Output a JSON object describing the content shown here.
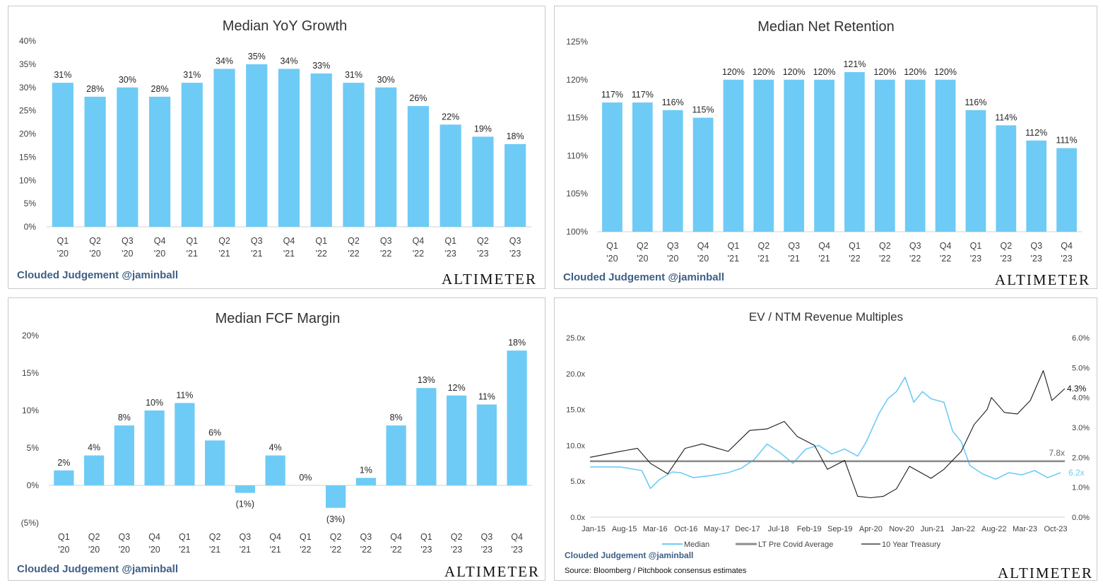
{
  "colors": {
    "bar": "#6ecbf5",
    "median_line": "#6ecbf5",
    "covid_avg_line": "#8c8c8c",
    "treasury_line": "#1a1a1a",
    "credit": "#3d5f86"
  },
  "branding": {
    "credit": "Clouded Judgement @jaminball",
    "logo": "ALTIMETER"
  },
  "panels": {
    "yoy": {
      "chart_data": {
        "type": "bar",
        "title": "Median YoY Growth",
        "categories": [
          [
            "Q1",
            "'20"
          ],
          [
            "Q2",
            "'20"
          ],
          [
            "Q3",
            "'20"
          ],
          [
            "Q4",
            "'20"
          ],
          [
            "Q1",
            "'21"
          ],
          [
            "Q2",
            "'21"
          ],
          [
            "Q3",
            "'21"
          ],
          [
            "Q4",
            "'21"
          ],
          [
            "Q1",
            "'22"
          ],
          [
            "Q2",
            "'22"
          ],
          [
            "Q3",
            "'22"
          ],
          [
            "Q4",
            "'22"
          ],
          [
            "Q1",
            "'23"
          ],
          [
            "Q2",
            "'23"
          ],
          [
            "Q3",
            "'23"
          ]
        ],
        "values": [
          31,
          28,
          30,
          28,
          31,
          34,
          35,
          34,
          33,
          31,
          30,
          26,
          22,
          19.4,
          17.8
        ],
        "data_labels": [
          "31%",
          "28%",
          "30%",
          "28%",
          "31%",
          "34%",
          "35%",
          "34%",
          "33%",
          "31%",
          "30%",
          "26%",
          "22%",
          "19%",
          "18%"
        ],
        "ylim": [
          0,
          40
        ],
        "yticks": [
          0,
          5,
          10,
          15,
          20,
          25,
          30,
          35,
          40
        ],
        "ytick_labels": [
          "0%",
          "5%",
          "10%",
          "15%",
          "20%",
          "25%",
          "30%",
          "35%",
          "40%"
        ]
      }
    },
    "retention": {
      "chart_data": {
        "type": "bar",
        "title": "Median Net Retention",
        "categories": [
          [
            "Q1",
            "'20"
          ],
          [
            "Q2",
            "'20"
          ],
          [
            "Q3",
            "'20"
          ],
          [
            "Q4",
            "'20"
          ],
          [
            "Q1",
            "'21"
          ],
          [
            "Q2",
            "'21"
          ],
          [
            "Q3",
            "'21"
          ],
          [
            "Q4",
            "'21"
          ],
          [
            "Q1",
            "'22"
          ],
          [
            "Q2",
            "'22"
          ],
          [
            "Q3",
            "'22"
          ],
          [
            "Q4",
            "'22"
          ],
          [
            "Q1",
            "'23"
          ],
          [
            "Q2",
            "'23"
          ],
          [
            "Q3",
            "'23"
          ],
          [
            "Q4",
            "'23"
          ]
        ],
        "values": [
          117,
          117,
          116,
          115,
          120,
          120,
          120,
          120,
          121,
          120,
          120,
          120,
          116,
          114,
          112,
          111
        ],
        "data_labels": [
          "117%",
          "117%",
          "116%",
          "115%",
          "120%",
          "120%",
          "120%",
          "120%",
          "121%",
          "120%",
          "120%",
          "120%",
          "116%",
          "114%",
          "112%",
          "111%"
        ],
        "ylim": [
          100,
          125
        ],
        "yticks": [
          100,
          105,
          110,
          115,
          120,
          125
        ],
        "ytick_labels": [
          "100%",
          "105%",
          "110%",
          "115%",
          "120%",
          "125%"
        ]
      }
    },
    "fcf": {
      "chart_data": {
        "type": "bar",
        "title": "Median FCF Margin",
        "categories": [
          [
            "Q1",
            "'20"
          ],
          [
            "Q2",
            "'20"
          ],
          [
            "Q3",
            "'20"
          ],
          [
            "Q4",
            "'20"
          ],
          [
            "Q1",
            "'21"
          ],
          [
            "Q2",
            "'21"
          ],
          [
            "Q3",
            "'21"
          ],
          [
            "Q4",
            "'21"
          ],
          [
            "Q1",
            "'22"
          ],
          [
            "Q2",
            "'22"
          ],
          [
            "Q3",
            "'22"
          ],
          [
            "Q4",
            "'22"
          ],
          [
            "Q1",
            "'23"
          ],
          [
            "Q2",
            "'23"
          ],
          [
            "Q3",
            "'23"
          ],
          [
            "Q4",
            "'23"
          ]
        ],
        "values": [
          2,
          4,
          8,
          10,
          11,
          6,
          -1,
          4,
          0,
          -3,
          1,
          8,
          13,
          12,
          10.8,
          18
        ],
        "data_labels": [
          "2%",
          "4%",
          "8%",
          "10%",
          "11%",
          "6%",
          "(1%)",
          "4%",
          "0%",
          "(3%)",
          "1%",
          "8%",
          "13%",
          "12%",
          "11%",
          "18%"
        ],
        "ylim": [
          -5,
          20
        ],
        "yticks": [
          -5,
          0,
          5,
          10,
          15,
          20
        ],
        "ytick_labels": [
          "(5%)",
          "0%",
          "5%",
          "10%",
          "15%",
          "20%"
        ]
      }
    },
    "multiples": {
      "chart_data": {
        "type": "line",
        "title": "EV / NTM Revenue Multiples",
        "x_labels": [
          "Jan-15",
          "Aug-15",
          "Mar-16",
          "Oct-16",
          "May-17",
          "Dec-17",
          "Jul-18",
          "Feb-19",
          "Sep-19",
          "Apr-20",
          "Nov-20",
          "Jun-21",
          "Jan-22",
          "Aug-22",
          "Mar-23",
          "Oct-23"
        ],
        "x_range": [
          "2015-01",
          "2024-03"
        ],
        "y_left": {
          "ticks": [
            0,
            5,
            10,
            15,
            20,
            25
          ],
          "labels": [
            "0.0x",
            "5.0x",
            "10.0x",
            "15.0x",
            "20.0x",
            "25.0x"
          ],
          "lim": [
            0,
            25
          ]
        },
        "y_right": {
          "ticks": [
            0,
            1,
            2,
            3,
            4,
            5,
            6
          ],
          "labels": [
            "0.0%",
            "1.0%",
            "2.0%",
            "3.0%",
            "4.0%",
            "5.0%",
            "6.0%"
          ],
          "lim": [
            0,
            6
          ]
        },
        "series": [
          {
            "name": "Median",
            "axis": "left",
            "x": [
              "2015-01",
              "2015-08",
              "2016-01",
              "2016-03",
              "2016-05",
              "2016-08",
              "2016-10",
              "2017-01",
              "2017-05",
              "2017-09",
              "2017-12",
              "2018-03",
              "2018-06",
              "2018-09",
              "2018-12",
              "2019-03",
              "2019-06",
              "2019-09",
              "2019-12",
              "2020-03",
              "2020-05",
              "2020-08",
              "2020-10",
              "2020-12",
              "2021-02",
              "2021-04",
              "2021-06",
              "2021-08",
              "2021-11",
              "2022-01",
              "2022-03",
              "2022-05",
              "2022-08",
              "2022-11",
              "2023-02",
              "2023-05",
              "2023-08",
              "2023-11",
              "2024-02"
            ],
            "y": [
              7.0,
              7.0,
              6.5,
              4.0,
              5.2,
              6.3,
              6.2,
              5.5,
              5.8,
              6.2,
              6.8,
              8.0,
              10.2,
              9.0,
              7.5,
              9.5,
              10.0,
              8.8,
              9.5,
              8.5,
              10.5,
              14.5,
              16.5,
              17.5,
              19.5,
              16.0,
              17.5,
              16.5,
              16.0,
              12.0,
              10.5,
              7.2,
              6.0,
              5.3,
              6.2,
              5.9,
              6.5,
              5.5,
              6.2
            ]
          },
          {
            "name": "LT Pre Covid Average",
            "axis": "left",
            "x": [
              "2015-01",
              "2024-03"
            ],
            "y": [
              7.8,
              7.8
            ]
          },
          {
            "name": "10 Year Treasury",
            "axis": "right",
            "x": [
              "2015-01",
              "2015-08",
              "2015-12",
              "2016-03",
              "2016-07",
              "2016-11",
              "2017-03",
              "2017-09",
              "2018-02",
              "2018-06",
              "2018-10",
              "2019-01",
              "2019-05",
              "2019-08",
              "2019-12",
              "2020-03",
              "2020-06",
              "2020-09",
              "2020-12",
              "2021-03",
              "2021-08",
              "2021-11",
              "2022-03",
              "2022-06",
              "2022-09",
              "2022-10",
              "2023-01",
              "2023-04",
              "2023-07",
              "2023-10",
              "2023-12",
              "2024-03"
            ],
            "y": [
              2.0,
              2.2,
              2.3,
              1.8,
              1.45,
              2.3,
              2.45,
              2.2,
              2.9,
              2.95,
              3.2,
              2.7,
              2.4,
              1.6,
              1.9,
              0.7,
              0.65,
              0.7,
              0.95,
              1.7,
              1.3,
              1.6,
              2.2,
              3.1,
              3.6,
              4.0,
              3.5,
              3.45,
              3.9,
              4.9,
              3.9,
              4.3
            ]
          }
        ],
        "end_labels": {
          "treasury": "4.3%",
          "covid_avg": "7.8x",
          "median": "6.2x"
        },
        "legend_position": "bottom",
        "grid": false
      },
      "source": "Source: Bloomberg / Pitchbook consensus estimates"
    }
  }
}
